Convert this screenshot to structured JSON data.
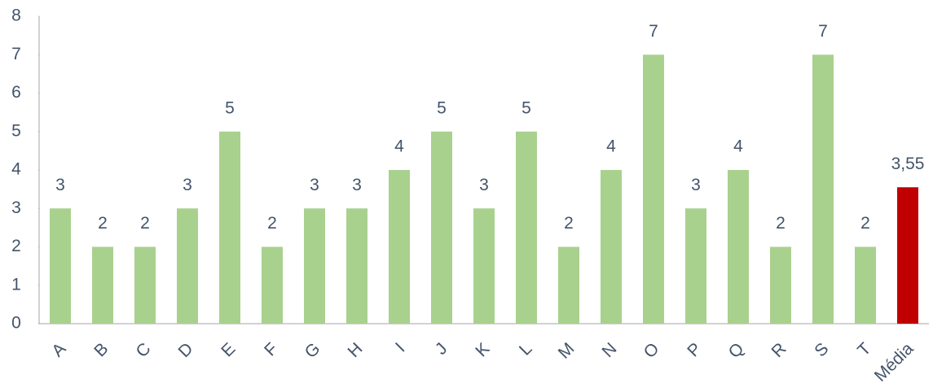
{
  "chart_data": {
    "type": "bar",
    "categories": [
      "A",
      "B",
      "C",
      "D",
      "E",
      "F",
      "G",
      "H",
      "I",
      "J",
      "K",
      "L",
      "M",
      "N",
      "O",
      "P",
      "Q",
      "R",
      "S",
      "T",
      "Média"
    ],
    "values": [
      3,
      2,
      2,
      3,
      5,
      2,
      3,
      3,
      4,
      5,
      3,
      5,
      2,
      4,
      7,
      3,
      4,
      2,
      7,
      2,
      3.55
    ],
    "value_labels": [
      "3",
      "2",
      "2",
      "3",
      "5",
      "2",
      "3",
      "3",
      "4",
      "5",
      "3",
      "5",
      "2",
      "4",
      "7",
      "3",
      "4",
      "2",
      "7",
      "2",
      "3,55"
    ],
    "colors": [
      "#a9d18e",
      "#a9d18e",
      "#a9d18e",
      "#a9d18e",
      "#a9d18e",
      "#a9d18e",
      "#a9d18e",
      "#a9d18e",
      "#a9d18e",
      "#a9d18e",
      "#a9d18e",
      "#a9d18e",
      "#a9d18e",
      "#a9d18e",
      "#a9d18e",
      "#a9d18e",
      "#a9d18e",
      "#a9d18e",
      "#a9d18e",
      "#a9d18e",
      "#c00000"
    ],
    "ylim": [
      0,
      8
    ],
    "yticks": [
      0,
      1,
      2,
      3,
      4,
      5,
      6,
      7,
      8
    ],
    "grid": false
  }
}
